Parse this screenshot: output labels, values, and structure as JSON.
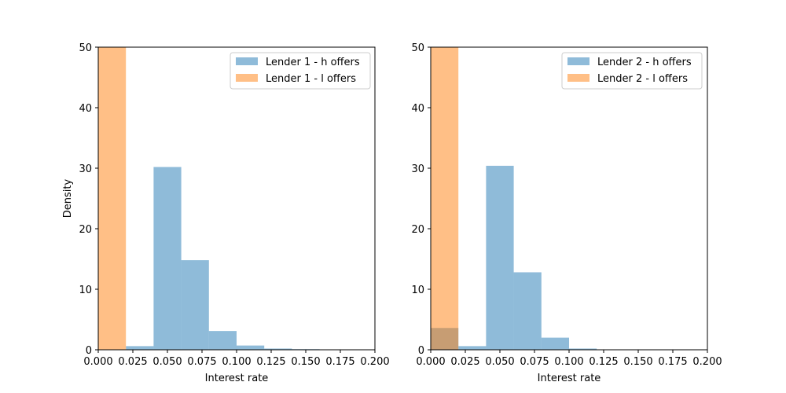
{
  "chart_data": [
    {
      "type": "bar",
      "subtype": "histogram",
      "xlabel": "Interest rate",
      "ylabel": "Density",
      "xlim": [
        0,
        0.2
      ],
      "ylim": [
        0,
        50
      ],
      "xticks": [
        "0.000",
        "0.025",
        "0.050",
        "0.075",
        "0.100",
        "0.125",
        "0.150",
        "0.175",
        "0.200"
      ],
      "yticks": [
        "0",
        "10",
        "20",
        "30",
        "40",
        "50"
      ],
      "grid": false,
      "legend_position": "top-right",
      "series": [
        {
          "name": "Lender 1 - h offers",
          "color": "#1f77b4",
          "alpha": 0.5,
          "bins": [
            {
              "x0": 0.02,
              "x1": 0.04,
              "value": 0.6
            },
            {
              "x0": 0.04,
              "x1": 0.06,
              "value": 30.2
            },
            {
              "x0": 0.06,
              "x1": 0.08,
              "value": 14.8
            },
            {
              "x0": 0.08,
              "x1": 0.1,
              "value": 3.1
            },
            {
              "x0": 0.1,
              "x1": 0.12,
              "value": 0.7
            },
            {
              "x0": 0.12,
              "x1": 0.14,
              "value": 0.2
            },
            {
              "x0": 0.14,
              "x1": 0.16,
              "value": 0.1
            }
          ]
        },
        {
          "name": "Lender 1 - l offers",
          "color": "#ff7f0e",
          "alpha": 0.5,
          "bins": [
            {
              "x0": 0.0,
              "x1": 0.02,
              "value": 50
            }
          ]
        }
      ]
    },
    {
      "type": "bar",
      "subtype": "histogram",
      "xlabel": "Interest rate",
      "ylabel": "",
      "xlim": [
        0,
        0.2
      ],
      "ylim": [
        0,
        50
      ],
      "xticks": [
        "0.000",
        "0.025",
        "0.050",
        "0.075",
        "0.100",
        "0.125",
        "0.150",
        "0.175",
        "0.200"
      ],
      "yticks": [
        "0",
        "10",
        "20",
        "30",
        "40",
        "50"
      ],
      "grid": false,
      "legend_position": "top-right",
      "series": [
        {
          "name": "Lender 2 - h offers",
          "color": "#1f77b4",
          "alpha": 0.5,
          "bins": [
            {
              "x0": 0.0,
              "x1": 0.02,
              "value": 3.6
            },
            {
              "x0": 0.02,
              "x1": 0.04,
              "value": 0.6
            },
            {
              "x0": 0.04,
              "x1": 0.06,
              "value": 30.4
            },
            {
              "x0": 0.06,
              "x1": 0.08,
              "value": 12.8
            },
            {
              "x0": 0.08,
              "x1": 0.1,
              "value": 2.0
            },
            {
              "x0": 0.1,
              "x1": 0.12,
              "value": 0.2
            }
          ]
        },
        {
          "name": "Lender 2 - l offers",
          "color": "#ff7f0e",
          "alpha": 0.5,
          "bins": [
            {
              "x0": 0.0,
              "x1": 0.02,
              "value": 50
            }
          ]
        }
      ]
    }
  ]
}
